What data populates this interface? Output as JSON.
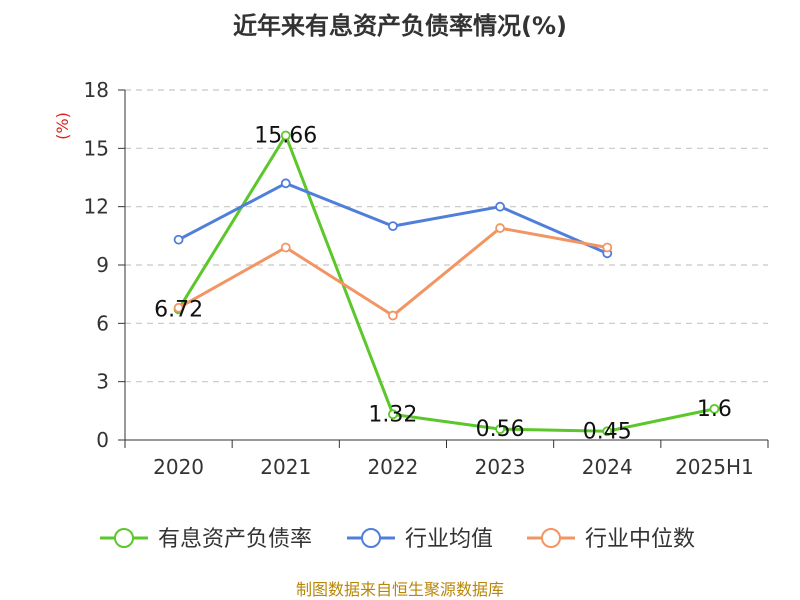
{
  "chart_data": {
    "type": "line",
    "title": "近年来有息资产负债率情况(%)",
    "y_unit": "(%)",
    "categories": [
      "2020",
      "2021",
      "2022",
      "2023",
      "2024",
      "2025H1"
    ],
    "ylim": [
      0,
      18
    ],
    "yticks": [
      0,
      3,
      6,
      9,
      12,
      15,
      18
    ],
    "grid": true,
    "legend_position": "bottom",
    "series": [
      {
        "name": "有息资产负债率",
        "color": "#5cc72a",
        "values": [
          6.72,
          15.66,
          1.32,
          0.56,
          0.45,
          1.6
        ],
        "labels": [
          "6.72",
          "15.66",
          "1.32",
          "0.56",
          "0.45",
          "1.6"
        ]
      },
      {
        "name": "行业均值",
        "color": "#4f7fdb",
        "values": [
          10.3,
          13.2,
          11.0,
          12.0,
          9.6,
          null
        ]
      },
      {
        "name": "行业中位数",
        "color": "#f39563",
        "values": [
          6.8,
          9.9,
          6.4,
          10.9,
          9.9,
          null
        ]
      }
    ]
  },
  "footer": {
    "source": "制图数据来自恒生聚源数据库"
  }
}
